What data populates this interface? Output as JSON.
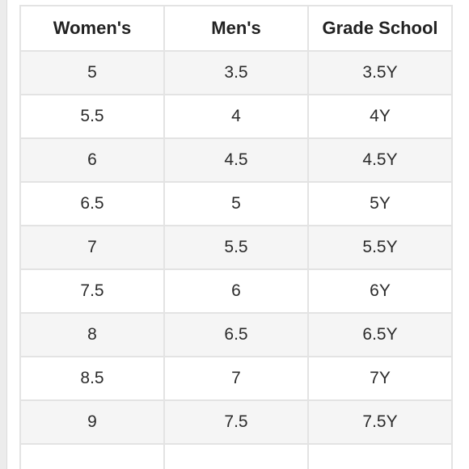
{
  "table": {
    "headers": [
      "Women's",
      "Men's",
      "Grade School"
    ],
    "rows": [
      [
        "5",
        "3.5",
        "3.5Y"
      ],
      [
        "5.5",
        "4",
        "4Y"
      ],
      [
        "6",
        "4.5",
        "4.5Y"
      ],
      [
        "6.5",
        "5",
        "5Y"
      ],
      [
        "7",
        "5.5",
        "5.5Y"
      ],
      [
        "7.5",
        "6",
        "6Y"
      ],
      [
        "8",
        "6.5",
        "6.5Y"
      ],
      [
        "8.5",
        "7",
        "7Y"
      ],
      [
        "9",
        "7.5",
        "7.5Y"
      ],
      [
        "",
        "",
        ""
      ]
    ]
  }
}
